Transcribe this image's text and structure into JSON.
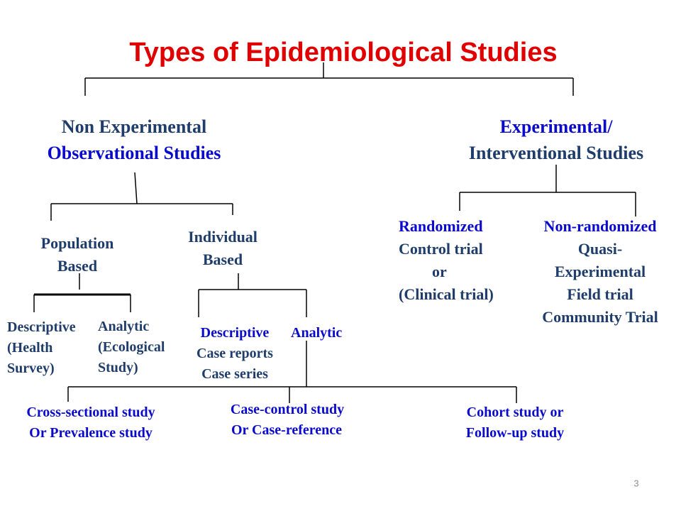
{
  "title": "Types of Epidemiological Studies",
  "colors": {
    "title": "#e00000",
    "slate": "#1f3d6b",
    "blue": "#0a0acc"
  },
  "non_experimental": {
    "line1": "Non Experimental",
    "line2": "Observational Studies"
  },
  "experimental": {
    "line1": "Experimental/",
    "line2": "Interventional Studies"
  },
  "population": {
    "line1": "Population",
    "line2": "Based"
  },
  "individual": {
    "line1": "Individual",
    "line2": "Based"
  },
  "randomized": {
    "line1": "Randomized",
    "line2": "Control trial",
    "line3": "or",
    "line4": "(Clinical trial)"
  },
  "non_randomized": {
    "line1": "Non-randomized",
    "line2": "Quasi-",
    "line3": "Experimental",
    "line4": "Field trial",
    "line5": "Community Trial"
  },
  "pop_descriptive": {
    "line1": "Descriptive",
    "line2": "(Health",
    "line3": "Survey)"
  },
  "pop_analytic": {
    "line1": "Analytic",
    "line2": "(Ecological",
    "line3": "Study)"
  },
  "ind_descriptive": {
    "line1": "Descriptive",
    "line2": "Case reports",
    "line3": "Case series"
  },
  "ind_analytic": {
    "line1": "Analytic"
  },
  "cross_sectional": {
    "line1": "Cross-sectional study",
    "line2": "Or Prevalence study"
  },
  "case_control": {
    "line1": "Case-control study",
    "line2": "Or Case-reference"
  },
  "cohort": {
    "line1": "Cohort study or",
    "line2": "Follow-up study"
  },
  "page_number": "3"
}
